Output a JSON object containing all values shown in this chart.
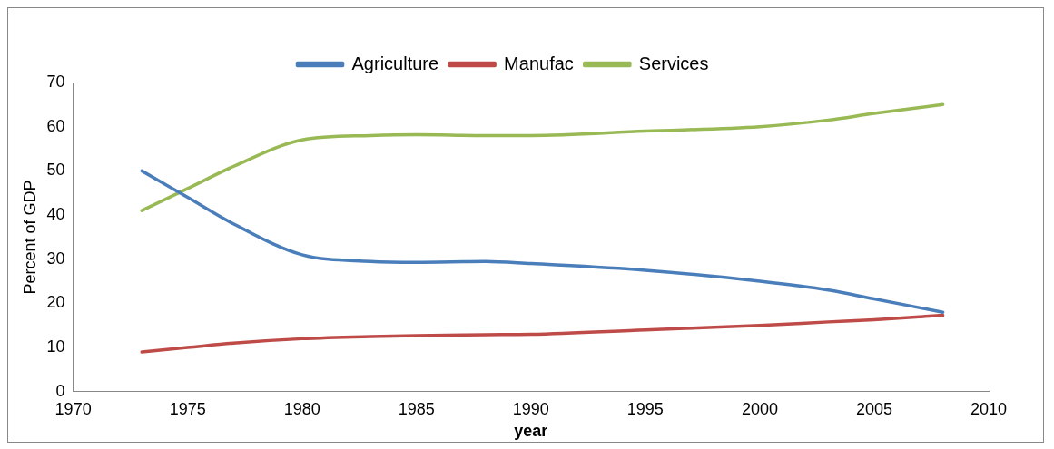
{
  "chart_data": {
    "type": "line",
    "xlabel": "year",
    "ylabel": "Percent of GDP",
    "xlim": [
      1970,
      2010
    ],
    "xticks": [
      1970,
      1975,
      1980,
      1985,
      1990,
      1995,
      2000,
      2005,
      2010
    ],
    "ylim": [
      0,
      70
    ],
    "yticks": [
      0,
      10,
      20,
      30,
      40,
      50,
      60,
      70
    ],
    "grid": false,
    "legend": "top",
    "marker": "none",
    "line_style": "solid",
    "x": [
      1973,
      1975,
      1977,
      1980,
      1983,
      1985,
      1988,
      1990,
      1995,
      2000,
      2003,
      2005,
      2008
    ],
    "series": [
      {
        "name": "Agriculture",
        "color": "#4a7ebb",
        "values": [
          50,
          44,
          38,
          31,
          29.5,
          29.3,
          29.5,
          29,
          27.5,
          25,
          23,
          21,
          18
        ]
      },
      {
        "name": "Manufac",
        "color": "#be4b48",
        "values": [
          9,
          10,
          11,
          12,
          12.5,
          12.7,
          12.9,
          13,
          14,
          15,
          15.8,
          16.3,
          17.3
        ]
      },
      {
        "name": "Services",
        "color": "#98b954",
        "values": [
          41,
          46,
          51,
          57,
          58,
          58.2,
          58,
          58,
          59,
          60,
          61.5,
          63,
          65
        ]
      }
    ]
  }
}
